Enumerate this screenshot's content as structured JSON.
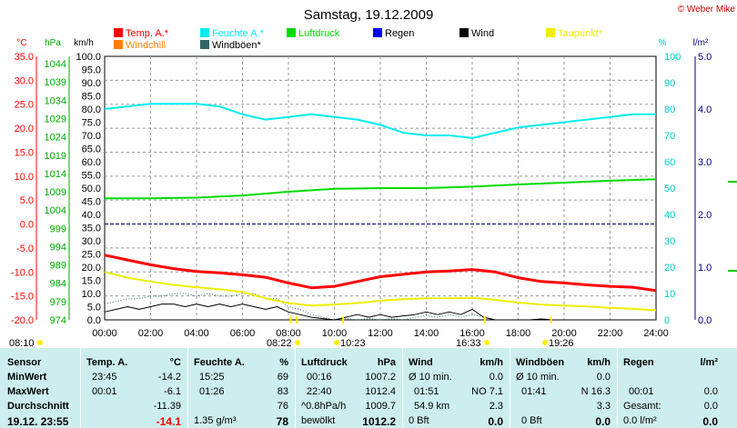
{
  "chart_data": {
    "type": "line",
    "title": "Samstag, 19.12.2009",
    "credit": "© Weber Mike",
    "x_ticks": [
      "00:00",
      "02:00",
      "04:00",
      "06:00",
      "08:00",
      "10:00",
      "12:00",
      "14:00",
      "16:00",
      "18:00",
      "20:00",
      "22:00",
      "24:00"
    ],
    "axes": {
      "temp": {
        "unit": "°C",
        "min": -20,
        "max": 35,
        "ticks": [
          "35.0",
          "30.0",
          "25.0",
          "20.0",
          "15.0",
          "10.0",
          "5.0",
          "0.0",
          "-5.0",
          "-10.0",
          "-15.0",
          "-20.0"
        ],
        "color": "#ff0000"
      },
      "pressure": {
        "unit": "hPa",
        "min": 974,
        "max": 1046,
        "ticks": [
          "1044",
          "1039",
          "1034",
          "1029",
          "1024",
          "1019",
          "1014",
          "1009",
          "1004",
          "999",
          "994",
          "989",
          "984",
          "979",
          "974"
        ],
        "color": "#00aa00"
      },
      "wind": {
        "unit": "km/h",
        "min": 0,
        "max": 100,
        "ticks": [
          "100.0",
          "95.0",
          "90.0",
          "85.0",
          "80.0",
          "75.0",
          "70.0",
          "65.0",
          "60.0",
          "55.0",
          "50.0",
          "45.0",
          "40.0",
          "35.0",
          "30.0",
          "25.0",
          "20.0",
          "15.0",
          "10.0",
          "5.0",
          "0.0"
        ],
        "color": "#000000"
      },
      "humidity": {
        "unit": "%",
        "min": 0,
        "max": 100,
        "ticks": [
          "100",
          "90",
          "80",
          "70",
          "60",
          "50",
          "40",
          "30",
          "20",
          "10",
          "0"
        ],
        "color": "#00cccc"
      },
      "rain": {
        "unit": "l/m²",
        "min": 0,
        "max": 5,
        "ticks": [
          "5.0",
          "4.0",
          "3.0",
          "2.0",
          "1.0",
          "0.0"
        ],
        "color": "#000080"
      }
    },
    "legend": [
      {
        "name": "Temp. A.*",
        "color": "#ff0000"
      },
      {
        "name": "Feuchte A.*",
        "color": "#00eeee"
      },
      {
        "name": "Luftdruck",
        "color": "#00dd00"
      },
      {
        "name": "Regen",
        "color": "#0000ff"
      },
      {
        "name": "Wind",
        "color": "#000000"
      },
      {
        "name": "Taupunkt*",
        "color": "#eeee00"
      },
      {
        "name": "Windchill",
        "color": "#ff8000"
      },
      {
        "name": "Windböen*",
        "color": "#336666"
      }
    ],
    "series": [
      {
        "name": "Temp. A.*",
        "axis": "temp",
        "color": "#ff0000",
        "x": [
          0,
          1,
          2,
          3,
          4,
          5,
          6,
          7,
          8,
          9,
          10,
          11,
          12,
          13,
          14,
          15,
          16,
          17,
          18,
          19,
          20,
          21,
          22,
          23,
          24
        ],
        "y": [
          -6.5,
          -7.5,
          -8.5,
          -9.3,
          -9.9,
          -10.2,
          -10.6,
          -11.1,
          -12.3,
          -13.3,
          -13.0,
          -12.0,
          -11.0,
          -10.5,
          -10.0,
          -9.8,
          -9.5,
          -10.0,
          -11.2,
          -12.0,
          -12.3,
          -12.7,
          -13.0,
          -13.2,
          -13.9
        ]
      },
      {
        "name": "Feuchte A.*",
        "axis": "humidity",
        "color": "#00eeee",
        "x": [
          0,
          1,
          2,
          3,
          4,
          5,
          6,
          7,
          8,
          9,
          10,
          11,
          12,
          13,
          14,
          15,
          16,
          17,
          18,
          19,
          20,
          21,
          22,
          23,
          24
        ],
        "y": [
          80,
          81,
          82,
          82,
          82,
          81,
          78,
          76,
          77,
          78,
          77,
          76,
          74,
          71,
          70,
          70,
          69,
          71,
          73,
          74,
          75,
          76,
          77,
          78,
          78
        ]
      },
      {
        "name": "Luftdruck",
        "axis": "pressure",
        "color": "#00dd00",
        "x": [
          0,
          2,
          4,
          6,
          8,
          10,
          12,
          14,
          16,
          18,
          20,
          22,
          24
        ],
        "y": [
          1007.2,
          1007.2,
          1007.4,
          1008.0,
          1009.0,
          1009.8,
          1010.0,
          1010.0,
          1010.4,
          1011.0,
          1011.5,
          1012.0,
          1012.4
        ]
      },
      {
        "name": "Taupunkt*",
        "axis": "temp",
        "color": "#eeee00",
        "x": [
          0,
          1,
          2,
          3,
          4,
          5,
          6,
          7,
          8,
          9,
          10,
          11,
          12,
          13,
          14,
          15,
          16,
          17,
          18,
          19,
          20,
          21,
          22,
          23,
          24
        ],
        "y": [
          -10.0,
          -11.2,
          -12.0,
          -12.7,
          -13.2,
          -13.6,
          -14.2,
          -15.5,
          -16.5,
          -17.0,
          -16.8,
          -16.5,
          -16.0,
          -15.7,
          -15.5,
          -15.5,
          -15.4,
          -15.8,
          -16.4,
          -16.8,
          -17.0,
          -17.2,
          -17.5,
          -17.7,
          -18.0
        ]
      },
      {
        "name": "Windböen*",
        "axis": "wind",
        "color": "#336666",
        "dotted": true,
        "x": [
          0,
          0.5,
          1,
          1.5,
          2,
          2.5,
          3,
          3.5,
          4,
          4.5,
          5,
          5.5,
          6,
          6.5,
          7,
          7.5,
          8,
          8.5,
          9,
          9.5,
          10,
          10.5,
          11,
          11.5,
          12,
          12.5,
          13,
          13.5,
          14,
          14.5,
          15,
          15.5,
          16,
          16.5,
          17,
          17.5,
          18,
          18.5,
          19,
          19.5,
          20,
          20.5,
          21,
          21.5,
          22,
          22.5,
          23,
          23.5,
          24
        ],
        "y": [
          6,
          7,
          8,
          8,
          9,
          9,
          10,
          10,
          9,
          10,
          9,
          9,
          10,
          10,
          8,
          8,
          5,
          4,
          2,
          1,
          0,
          0.5,
          0,
          0.5,
          0,
          0.5,
          0,
          1,
          1.5,
          1,
          2,
          1,
          2,
          1,
          0,
          0,
          0,
          0,
          0.5,
          0,
          0,
          0,
          0,
          0,
          0,
          0,
          0,
          0,
          0
        ]
      },
      {
        "name": "Wind",
        "axis": "wind",
        "color": "#000000",
        "x": [
          0,
          0.5,
          1,
          1.5,
          2,
          2.5,
          3,
          3.5,
          4,
          4.5,
          5,
          5.5,
          6,
          6.5,
          7,
          7.5,
          8,
          8.5,
          9,
          9.5,
          10,
          10.5,
          11,
          11.5,
          12,
          12.5,
          13,
          13.5,
          14,
          14.5,
          15,
          15.5,
          16,
          16.5,
          17,
          17.5,
          18,
          18.5,
          19,
          19.5,
          20,
          20.5,
          21,
          21.5,
          22,
          22.5,
          23,
          23.5,
          24
        ],
        "y": [
          3,
          4,
          5,
          4,
          5,
          6,
          6,
          5,
          6,
          5,
          6,
          5,
          6,
          5,
          4,
          5,
          3,
          2,
          1,
          0.5,
          0,
          1,
          2,
          1,
          2,
          1,
          1.5,
          2,
          3,
          2,
          3,
          2,
          4,
          1,
          0,
          0,
          0,
          0,
          0.3,
          0,
          0,
          0,
          0,
          0,
          0,
          0,
          0,
          0,
          0
        ]
      }
    ],
    "sun_events": [
      {
        "label": "08:10",
        "hour": 8.1
      },
      {
        "label": "08:22",
        "hour": 8.37
      },
      {
        "label": "10:23",
        "hour": 10.38
      },
      {
        "label": "16:33",
        "hour": 16.55
      },
      {
        "label": "19:26",
        "hour": 19.43
      }
    ]
  },
  "table": {
    "sensor": {
      "header": "Sensor",
      "rows": [
        "MinWert",
        "MaxWert",
        "Durchschnitt",
        "19.12. 23:55"
      ]
    },
    "temp": {
      "header": "Temp. A.",
      "unit": "°C",
      "rows": [
        [
          "23:45",
          "-14.2"
        ],
        [
          "00:01",
          "-6.1"
        ],
        [
          "",
          "-11.39"
        ],
        [
          "",
          "-14.1"
        ]
      ]
    },
    "humidity": {
      "header": "Feuchte A.",
      "unit": "%",
      "rows": [
        [
          "15:25",
          "69"
        ],
        [
          "01:26",
          "83"
        ],
        [
          "",
          "76"
        ],
        [
          "1.35 g/m³",
          "78"
        ]
      ]
    },
    "pressure": {
      "header": "Luftdruck",
      "unit": "hPa",
      "rows": [
        [
          "00:16",
          "1007.2"
        ],
        [
          "22:40",
          "1012.4"
        ],
        [
          "^0.8hPa/h",
          "1009.7"
        ],
        [
          "bewölkt",
          "1012.2"
        ]
      ]
    },
    "wind": {
      "header": "Wind",
      "unit": "km/h",
      "rows": [
        [
          "Ø 10 min.",
          "0.0"
        ],
        [
          "01:51",
          "NO 7.1"
        ],
        [
          "54.9 km",
          "2.3"
        ],
        [
          "0 Bft",
          "0.0"
        ]
      ]
    },
    "gusts": {
      "header": "Windböen",
      "unit": "km/h",
      "rows": [
        [
          "Ø 10 min.",
          "0.0"
        ],
        [
          "01:41",
          "N 16.3"
        ],
        [
          "",
          "3.3"
        ],
        [
          "0 Bft",
          "0.0"
        ]
      ]
    },
    "rain": {
      "header": "Regen",
      "unit": "l/m²",
      "rows": [
        [
          "",
          ""
        ],
        [
          "00:01",
          "0.0"
        ],
        [
          "Gesamt:",
          "0.0"
        ],
        [
          "0.0 l/m²",
          "0.0"
        ]
      ]
    }
  }
}
